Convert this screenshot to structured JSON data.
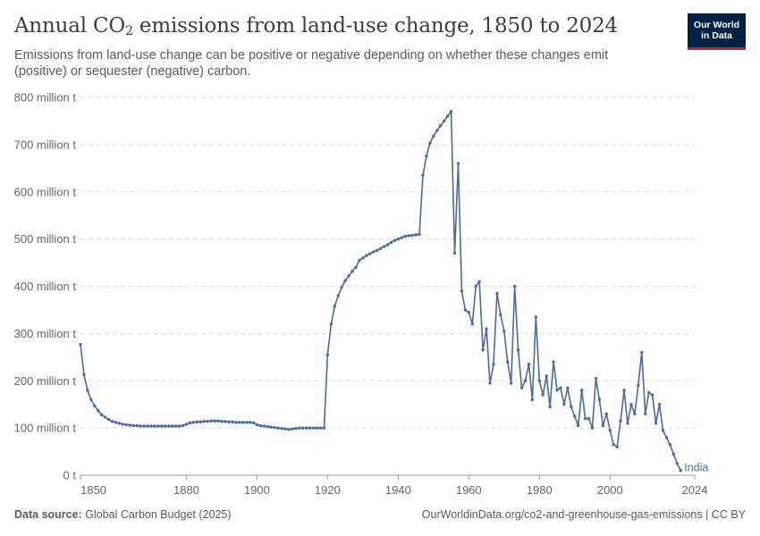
{
  "header": {
    "title_main": "Annual CO",
    "title_sub": "2",
    "title_rest": " emissions from land-use change, 1850 to 2024",
    "subtitle": "Emissions from land-use change can be positive or negative depending on whether these changes emit (positive) or sequester (negative) carbon."
  },
  "logo": {
    "line1": "Our World",
    "line2": "in Data"
  },
  "footer": {
    "source_label": "Data source:",
    "source_text": " Global Carbon Budget (2025)",
    "right_text": "OurWorldinData.org/co2-and-greenhouse-gas-emissions | CC BY"
  },
  "colors": {
    "line": "#4c6a9c",
    "logo_bg": "#002147",
    "logo_accent": "#ce261e",
    "grid": "#dddddd"
  },
  "chart_data": {
    "type": "line",
    "title": "Annual CO2 emissions from land-use change, 1850 to 2024",
    "ylabel": "",
    "xlabel": "",
    "xlim": [
      1850,
      2024
    ],
    "ylim": [
      0,
      800
    ],
    "x_ticks": [
      1850,
      1880,
      1900,
      1920,
      1940,
      1960,
      1980,
      2000,
      2024
    ],
    "y_ticks": [
      0,
      100,
      200,
      300,
      400,
      500,
      600,
      700,
      800
    ],
    "y_tick_labels": [
      "0 t",
      "100 million t",
      "200 million t",
      "300 million t",
      "400 million t",
      "500 million t",
      "600 million t",
      "700 million t",
      "800 million t"
    ],
    "grid": true,
    "markers": true,
    "series": [
      {
        "name": "India",
        "x_start": 1850,
        "x_step": 1,
        "values": [
          277,
          213,
          180,
          160,
          147,
          137,
          128,
          123,
          118,
          114,
          112,
          110,
          108,
          107,
          106,
          105,
          105,
          104,
          104,
          104,
          104,
          104,
          104,
          104,
          104,
          104,
          104,
          104,
          104,
          105,
          108,
          111,
          112,
          113,
          113,
          114,
          114,
          115,
          115,
          115,
          114,
          114,
          113,
          113,
          112,
          112,
          112,
          112,
          112,
          111,
          107,
          105,
          104,
          103,
          102,
          101,
          100,
          99,
          98,
          97,
          98,
          99,
          100,
          100,
          100,
          100,
          100,
          100,
          100,
          100,
          255,
          320,
          358,
          380,
          398,
          412,
          422,
          432,
          440,
          455,
          460,
          465,
          469,
          473,
          476,
          480,
          484,
          488,
          493,
          497,
          500,
          503,
          506,
          507,
          508,
          509,
          510,
          635,
          676,
          703,
          718,
          730,
          740,
          750,
          760,
          770,
          470,
          660,
          390,
          350,
          345,
          320,
          400,
          410,
          265,
          310,
          195,
          235,
          385,
          340,
          305,
          240,
          195,
          400,
          265,
          185,
          200,
          235,
          160,
          335,
          200,
          170,
          210,
          145,
          240,
          180,
          185,
          150,
          185,
          145,
          125,
          105,
          180,
          120,
          120,
          100,
          205,
          160,
          105,
          130,
          95,
          65,
          60,
          115,
          180,
          110,
          150,
          130,
          190,
          260,
          130,
          175,
          170,
          110,
          150,
          95,
          80,
          65,
          45,
          25,
          10
        ]
      }
    ]
  }
}
